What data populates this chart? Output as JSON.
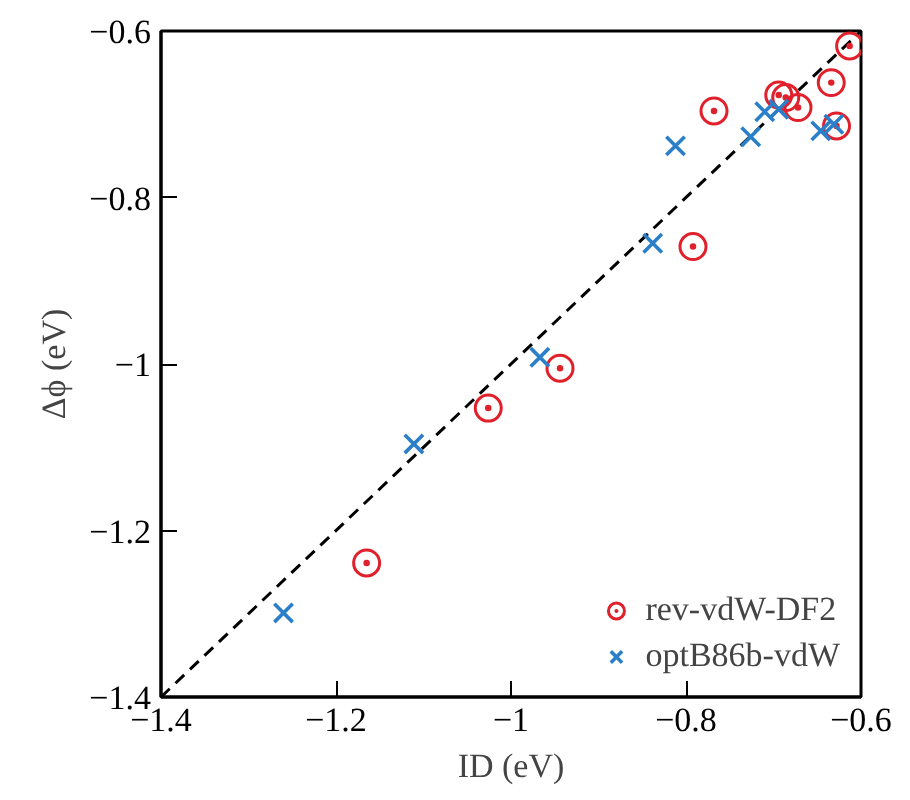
{
  "chart_data": {
    "type": "scatter",
    "xlabel": "ID (eV)",
    "ylabel": "Δϕ (eV)",
    "xlim": [
      -1.4,
      -0.6
    ],
    "ylim": [
      -1.4,
      -0.6
    ],
    "xticks": [
      {
        "value": -1.4,
        "label": "−1.4"
      },
      {
        "value": -1.2,
        "label": "−1.2"
      },
      {
        "value": -1.0,
        "label": "−1"
      },
      {
        "value": -0.8,
        "label": "−0.8"
      },
      {
        "value": -0.6,
        "label": "−0.6"
      }
    ],
    "yticks": [
      {
        "value": -1.4,
        "label": "−1.4"
      },
      {
        "value": -1.2,
        "label": "−1.2"
      },
      {
        "value": -1.0,
        "label": "−1"
      },
      {
        "value": -0.8,
        "label": "−0.8"
      },
      {
        "value": -0.6,
        "label": "−0.6"
      }
    ],
    "grid": false,
    "legend": "bottom right",
    "series": [
      {
        "type": "line",
        "color": "#000000",
        "line_style": "dashed",
        "marker": "none",
        "x": [
          -1.4,
          -0.6
        ],
        "values": [
          -1.4,
          -0.6
        ]
      },
      {
        "name": "rev-vdW-DF2",
        "color": "#e0202a",
        "marker": "circle",
        "x": [
          -0.613,
          -0.634,
          -0.768,
          -0.694,
          -0.686,
          -0.672,
          -0.628,
          -0.792,
          -0.944,
          -1.026,
          -1.165
        ],
        "values": [
          -0.618,
          -0.662,
          -0.696,
          -0.677,
          -0.68,
          -0.692,
          -0.714,
          -0.859,
          -1.005,
          -1.053,
          -1.239
        ]
      },
      {
        "name": "optB86b-vdW",
        "color": "#2a7fc8",
        "marker": "cross",
        "x": [
          -1.26,
          -1.111,
          -0.967,
          -0.838,
          -0.812,
          -0.726,
          -0.71,
          -0.694,
          -0.646,
          -0.631
        ],
        "values": [
          -1.299,
          -1.096,
          -0.992,
          -0.855,
          -0.738,
          -0.727,
          -0.697,
          -0.694,
          -0.72,
          -0.712
        ]
      }
    ]
  }
}
